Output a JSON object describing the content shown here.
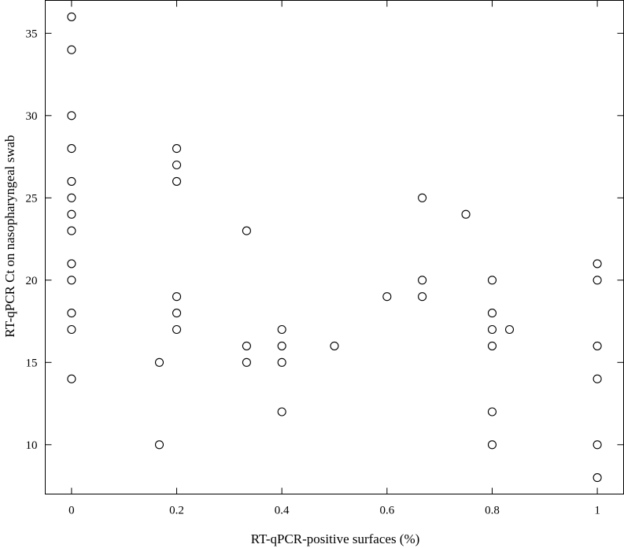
{
  "chart_data": {
    "type": "scatter",
    "xlabel": "RT-qPCR-positive surfaces (%)",
    "ylabel": "RT-qPCR Ct on nasopharyngeal swab",
    "xlim": [
      -0.05,
      1.05
    ],
    "ylim": [
      7,
      37
    ],
    "xticks": [
      0,
      0.2,
      0.4,
      0.6,
      0.8,
      1
    ],
    "xtick_labels": [
      "0",
      "0.2",
      "0.4",
      "0.6",
      "0.8",
      "1"
    ],
    "yticks": [
      10,
      15,
      20,
      25,
      30,
      35
    ],
    "ytick_labels": [
      "10",
      "15",
      "20",
      "25",
      "30",
      "35"
    ],
    "grid": false,
    "marker": "open-circle",
    "points": [
      {
        "x": 0,
        "y": 36
      },
      {
        "x": 0,
        "y": 34
      },
      {
        "x": 0,
        "y": 30
      },
      {
        "x": 0,
        "y": 28
      },
      {
        "x": 0,
        "y": 26
      },
      {
        "x": 0,
        "y": 25
      },
      {
        "x": 0,
        "y": 24
      },
      {
        "x": 0,
        "y": 23
      },
      {
        "x": 0,
        "y": 21
      },
      {
        "x": 0,
        "y": 20
      },
      {
        "x": 0,
        "y": 18
      },
      {
        "x": 0,
        "y": 17
      },
      {
        "x": 0,
        "y": 14
      },
      {
        "x": 0.167,
        "y": 15
      },
      {
        "x": 0.167,
        "y": 10
      },
      {
        "x": 0.2,
        "y": 28
      },
      {
        "x": 0.2,
        "y": 27
      },
      {
        "x": 0.2,
        "y": 26
      },
      {
        "x": 0.2,
        "y": 19
      },
      {
        "x": 0.2,
        "y": 18
      },
      {
        "x": 0.2,
        "y": 17
      },
      {
        "x": 0.333,
        "y": 23
      },
      {
        "x": 0.333,
        "y": 16
      },
      {
        "x": 0.333,
        "y": 15
      },
      {
        "x": 0.4,
        "y": 17
      },
      {
        "x": 0.4,
        "y": 16
      },
      {
        "x": 0.4,
        "y": 15
      },
      {
        "x": 0.4,
        "y": 12
      },
      {
        "x": 0.5,
        "y": 16
      },
      {
        "x": 0.6,
        "y": 19
      },
      {
        "x": 0.667,
        "y": 25
      },
      {
        "x": 0.667,
        "y": 20
      },
      {
        "x": 0.667,
        "y": 19
      },
      {
        "x": 0.75,
        "y": 24
      },
      {
        "x": 0.8,
        "y": 20
      },
      {
        "x": 0.8,
        "y": 18
      },
      {
        "x": 0.8,
        "y": 17
      },
      {
        "x": 0.8,
        "y": 16
      },
      {
        "x": 0.8,
        "y": 12
      },
      {
        "x": 0.8,
        "y": 10
      },
      {
        "x": 0.833,
        "y": 17
      },
      {
        "x": 1,
        "y": 21
      },
      {
        "x": 1,
        "y": 20
      },
      {
        "x": 1,
        "y": 16
      },
      {
        "x": 1,
        "y": 14
      },
      {
        "x": 1,
        "y": 10
      },
      {
        "x": 1,
        "y": 8
      }
    ]
  }
}
